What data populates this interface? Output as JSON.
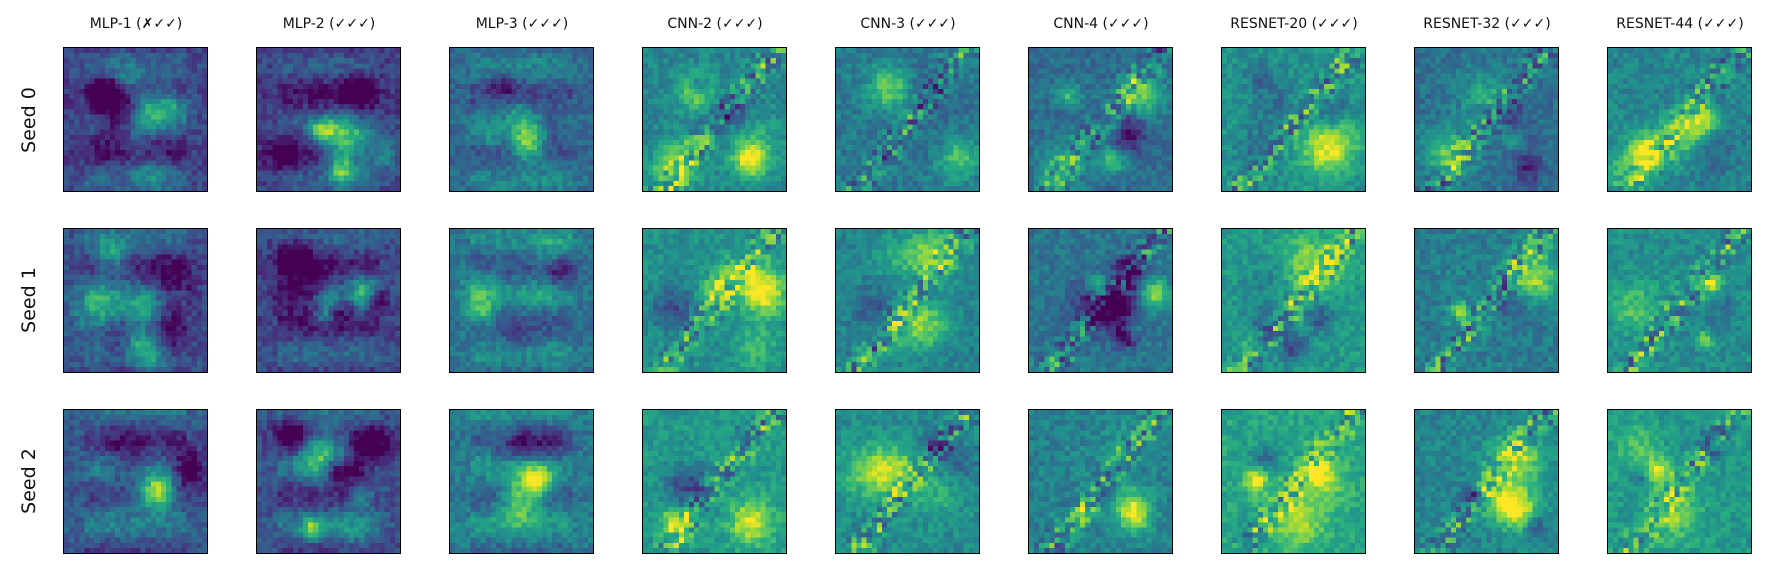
{
  "columns": [
    {
      "title": "MLP-1 (✗✓✓)",
      "style": "mlp",
      "base": 0.25
    },
    {
      "title": "MLP-2 (✓✓✓)",
      "style": "mlp",
      "base": 0.22
    },
    {
      "title": "MLP-3 (✓✓✓)",
      "style": "mlp",
      "base": 0.38
    },
    {
      "title": "CNN-2 (✓✓✓)",
      "style": "cnn",
      "base": 0.5
    },
    {
      "title": "CNN-3 (✓✓✓)",
      "style": "cnn",
      "base": 0.45
    },
    {
      "title": "CNN-4 (✓✓✓)",
      "style": "cnn",
      "base": 0.4
    },
    {
      "title": "RESNET-20 (✓✓✓)",
      "style": "resnet",
      "base": 0.55
    },
    {
      "title": "RESNET-32 (✓✓✓)",
      "style": "resnet",
      "base": 0.42
    },
    {
      "title": "RESNET-44 (✓✓✓)",
      "style": "resnet",
      "base": 0.5
    }
  ],
  "rows": [
    {
      "label": "Seed 0"
    },
    {
      "label": "Seed 1"
    },
    {
      "label": "Seed 2"
    }
  ],
  "colormap": "viridis"
}
